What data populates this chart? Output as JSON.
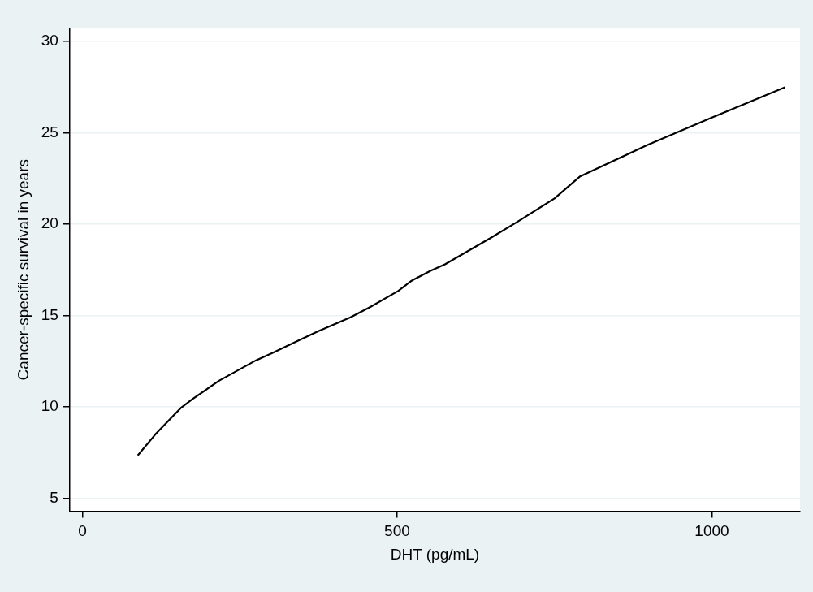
{
  "chart_data": {
    "type": "line",
    "xlabel": "DHT (pg/mL)",
    "ylabel": "Cancer-specific survival in years",
    "x": [
      88,
      116,
      156,
      175,
      217,
      276,
      303,
      340,
      375,
      426,
      458,
      502,
      523,
      553,
      576,
      648,
      690,
      750,
      790,
      897,
      1000,
      1116
    ],
    "series": [
      {
        "color": "#000000",
        "values": [
          7.35,
          8.5,
          9.93,
          10.43,
          11.43,
          12.55,
          12.97,
          13.58,
          14.14,
          14.9,
          15.48,
          16.35,
          16.9,
          17.44,
          17.8,
          19.23,
          20.1,
          21.4,
          22.59,
          24.32,
          25.83,
          27.48
        ]
      }
    ],
    "xlim": [
      -20,
      1140
    ],
    "ylim": [
      4.3,
      30.7
    ],
    "xticks": [
      0,
      500,
      1000
    ],
    "yticks": [
      5,
      10,
      15,
      20,
      25,
      30
    ],
    "grid": "y",
    "legend": false,
    "marker": "none",
    "line_style": "solid"
  }
}
